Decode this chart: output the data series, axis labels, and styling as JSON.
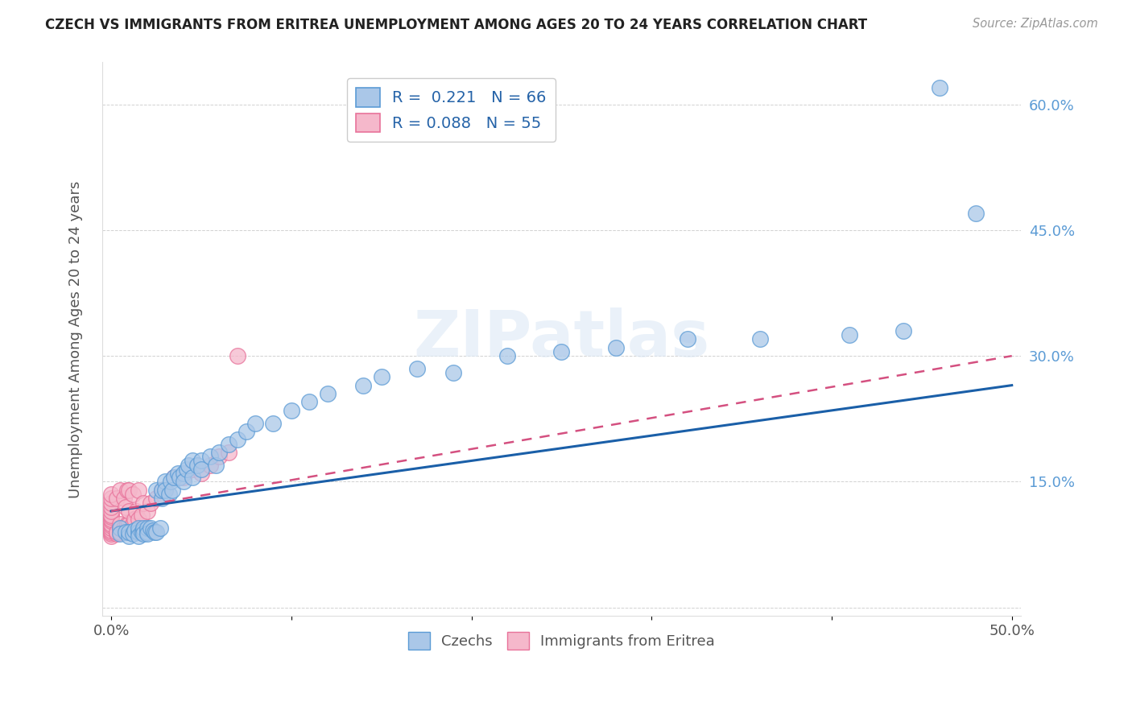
{
  "title": "CZECH VS IMMIGRANTS FROM ERITREA UNEMPLOYMENT AMONG AGES 20 TO 24 YEARS CORRELATION CHART",
  "source": "Source: ZipAtlas.com",
  "ylabel": "Unemployment Among Ages 20 to 24 years",
  "xlim": [
    -0.005,
    0.505
  ],
  "ylim": [
    -0.01,
    0.65
  ],
  "czechs_R": 0.221,
  "czechs_N": 66,
  "eritrea_R": 0.088,
  "eritrea_N": 55,
  "czech_color": "#aac7e8",
  "czech_edge_color": "#5b9bd5",
  "eritrea_color": "#f5b8cb",
  "eritrea_edge_color": "#e8729a",
  "czech_line_color": "#1a5fa8",
  "eritrea_line_color": "#d45080",
  "legend_R_color": "#2563a8",
  "czechs_x": [
    0.005,
    0.005,
    0.008,
    0.01,
    0.01,
    0.012,
    0.013,
    0.015,
    0.015,
    0.015,
    0.017,
    0.018,
    0.018,
    0.018,
    0.02,
    0.02,
    0.02,
    0.022,
    0.023,
    0.024,
    0.025,
    0.025,
    0.027,
    0.028,
    0.028,
    0.03,
    0.03,
    0.032,
    0.033,
    0.034,
    0.035,
    0.037,
    0.038,
    0.04,
    0.04,
    0.042,
    0.043,
    0.045,
    0.045,
    0.048,
    0.05,
    0.05,
    0.055,
    0.058,
    0.06,
    0.065,
    0.07,
    0.075,
    0.08,
    0.09,
    0.1,
    0.11,
    0.12,
    0.14,
    0.15,
    0.17,
    0.19,
    0.22,
    0.25,
    0.28,
    0.32,
    0.36,
    0.41,
    0.44,
    0.46,
    0.48
  ],
  "czechs_y": [
    0.095,
    0.088,
    0.09,
    0.085,
    0.09,
    0.088,
    0.092,
    0.09,
    0.095,
    0.085,
    0.09,
    0.092,
    0.095,
    0.088,
    0.09,
    0.095,
    0.088,
    0.095,
    0.092,
    0.09,
    0.14,
    0.09,
    0.095,
    0.13,
    0.14,
    0.15,
    0.14,
    0.135,
    0.15,
    0.14,
    0.155,
    0.16,
    0.155,
    0.16,
    0.15,
    0.165,
    0.17,
    0.175,
    0.155,
    0.17,
    0.175,
    0.165,
    0.18,
    0.17,
    0.185,
    0.195,
    0.2,
    0.21,
    0.22,
    0.22,
    0.235,
    0.245,
    0.255,
    0.265,
    0.275,
    0.285,
    0.28,
    0.3,
    0.305,
    0.31,
    0.32,
    0.32,
    0.325,
    0.33,
    0.62,
    0.47
  ],
  "eritrea_x": [
    0.0,
    0.0,
    0.0,
    0.0,
    0.0,
    0.0,
    0.0,
    0.0,
    0.0,
    0.0,
    0.0,
    0.0,
    0.0,
    0.0,
    0.0,
    0.0,
    0.003,
    0.003,
    0.003,
    0.005,
    0.005,
    0.005,
    0.005,
    0.007,
    0.007,
    0.007,
    0.008,
    0.008,
    0.009,
    0.009,
    0.01,
    0.01,
    0.01,
    0.01,
    0.012,
    0.012,
    0.013,
    0.014,
    0.015,
    0.015,
    0.017,
    0.018,
    0.02,
    0.022,
    0.025,
    0.028,
    0.03,
    0.035,
    0.04,
    0.045,
    0.05,
    0.055,
    0.06,
    0.065,
    0.07
  ],
  "eritrea_y": [
    0.085,
    0.088,
    0.09,
    0.092,
    0.095,
    0.098,
    0.1,
    0.103,
    0.105,
    0.108,
    0.11,
    0.115,
    0.12,
    0.125,
    0.13,
    0.135,
    0.088,
    0.09,
    0.13,
    0.09,
    0.095,
    0.1,
    0.14,
    0.092,
    0.095,
    0.13,
    0.09,
    0.12,
    0.1,
    0.14,
    0.095,
    0.1,
    0.115,
    0.14,
    0.1,
    0.135,
    0.105,
    0.115,
    0.105,
    0.14,
    0.11,
    0.125,
    0.115,
    0.125,
    0.13,
    0.14,
    0.14,
    0.155,
    0.155,
    0.165,
    0.16,
    0.17,
    0.18,
    0.185,
    0.3
  ],
  "czech_line_x": [
    0.0,
    0.5
  ],
  "czech_line_y": [
    0.115,
    0.265
  ],
  "eritrea_line_x": [
    0.0,
    0.5
  ],
  "eritrea_line_y": [
    0.115,
    0.3
  ]
}
